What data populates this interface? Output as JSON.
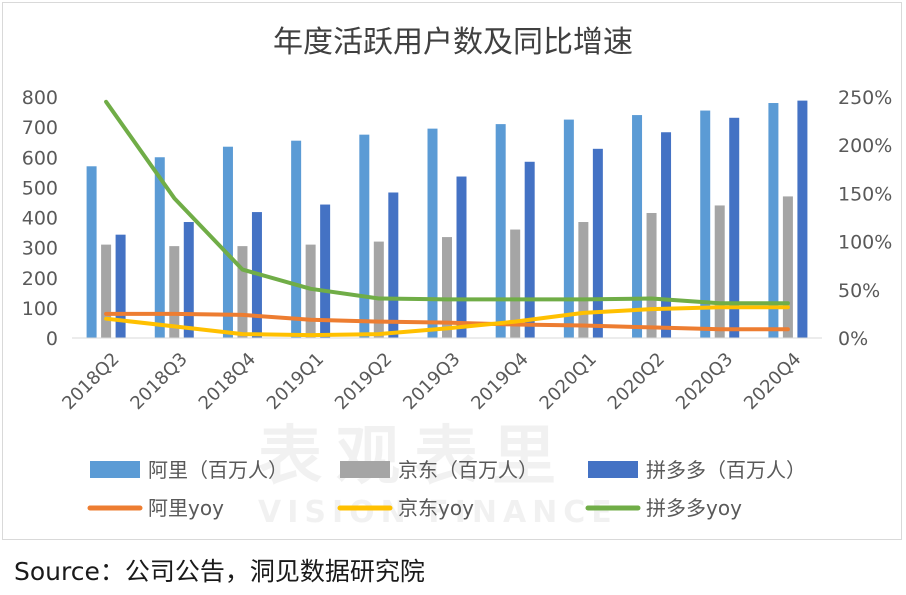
{
  "chart_data": {
    "type": "bar+line",
    "title": "年度活跃用户数及同比增速",
    "categories": [
      "2018Q2",
      "2018Q3",
      "2018Q4",
      "2019Q1",
      "2019Q2",
      "2019Q3",
      "2019Q4",
      "2020Q1",
      "2020Q2",
      "2020Q3",
      "2020Q4"
    ],
    "left_axis": {
      "min": 0,
      "max": 800,
      "step": 100,
      "ticks": [
        "0",
        "100",
        "200",
        "300",
        "400",
        "500",
        "600",
        "700",
        "800"
      ]
    },
    "right_axis": {
      "min": 0,
      "max": 250,
      "step": 50,
      "ticks": [
        "0%",
        "50%",
        "100%",
        "150%",
        "200%",
        "250%"
      ]
    },
    "bar_series": [
      {
        "name": "阿里（百万人）",
        "color": "#5b9bd5",
        "values": [
          570,
          600,
          635,
          655,
          675,
          695,
          710,
          725,
          740,
          755,
          780
        ]
      },
      {
        "name": "京东（百万人）",
        "color": "#a5a5a5",
        "values": [
          310,
          305,
          305,
          310,
          320,
          335,
          360,
          385,
          415,
          440,
          470
        ]
      },
      {
        "name": "拼多多（百万人）",
        "color": "#4472c4",
        "values": [
          343,
          385,
          418,
          443,
          483,
          536,
          585,
          628,
          683,
          731,
          788
        ]
      }
    ],
    "line_series": [
      {
        "name": "阿里yoy",
        "color": "#ed7d31",
        "values": [
          25,
          25,
          24,
          19,
          17,
          16,
          14,
          13,
          11,
          9,
          9
        ]
      },
      {
        "name": "京东yoy",
        "color": "#ffc000",
        "values": [
          20,
          12,
          4,
          3,
          4,
          10,
          17,
          26,
          30,
          32,
          32
        ]
      },
      {
        "name": "拼多多yoy",
        "color": "#70ad47",
        "values": [
          245,
          145,
          71,
          51,
          41,
          40,
          40,
          40,
          41,
          36,
          36
        ]
      }
    ],
    "legend_position": "bottom"
  },
  "watermark": {
    "cn": "表观表里",
    "en": "VISION FINANCE"
  },
  "source_text": "Source：公司公告，洞见数据研究院"
}
